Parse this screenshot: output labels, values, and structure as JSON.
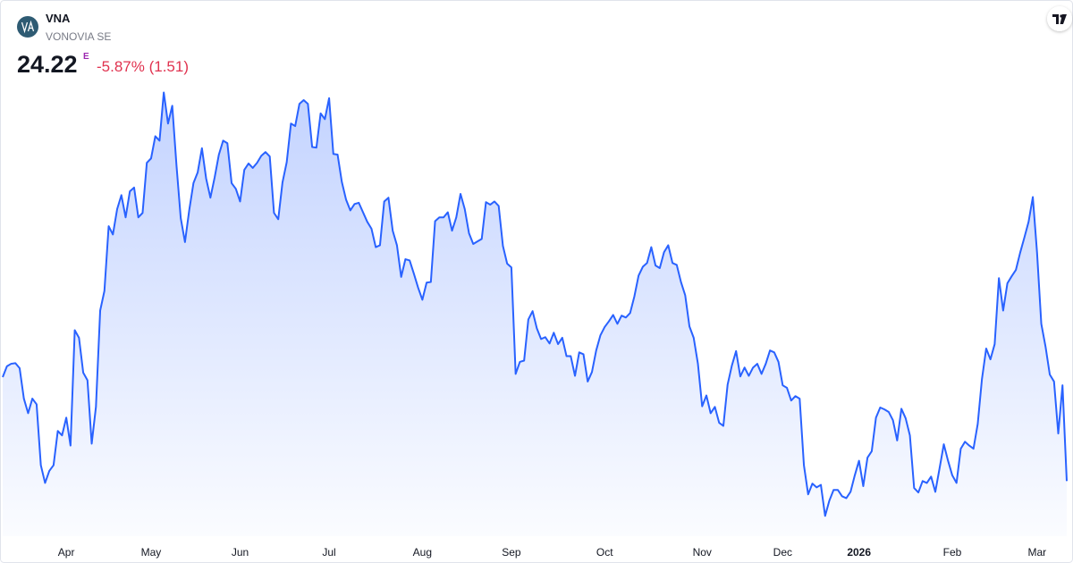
{
  "header": {
    "symbol": "VNA",
    "name": "VONOVIA SE",
    "price": 24.22,
    "price_flag": "E",
    "change_label": "-5.87% (1.51)"
  },
  "chart_data": {
    "type": "area",
    "color": "#2962ff",
    "ylim": [
      23.35,
      30.54
    ],
    "categories": [
      null,
      null,
      null,
      null,
      null,
      null,
      null,
      null,
      null,
      null,
      null,
      null,
      null,
      null,
      null,
      "Apr",
      null,
      null,
      null,
      null,
      null,
      null,
      null,
      null,
      null,
      null,
      null,
      null,
      null,
      null,
      null,
      null,
      null,
      null,
      null,
      "May",
      null,
      null,
      null,
      null,
      null,
      null,
      null,
      null,
      null,
      null,
      null,
      null,
      null,
      null,
      null,
      null,
      null,
      null,
      null,
      null,
      "Jun",
      null,
      null,
      null,
      null,
      null,
      null,
      null,
      null,
      null,
      null,
      null,
      null,
      null,
      null,
      null,
      null,
      null,
      null,
      null,
      null,
      "Jul",
      null,
      null,
      null,
      null,
      null,
      null,
      null,
      null,
      null,
      null,
      null,
      null,
      null,
      null,
      null,
      null,
      null,
      null,
      null,
      null,
      null,
      "Aug",
      null,
      null,
      null,
      null,
      null,
      null,
      null,
      null,
      null,
      null,
      null,
      null,
      null,
      null,
      null,
      null,
      null,
      null,
      null,
      null,
      "Sep",
      null,
      null,
      null,
      null,
      null,
      null,
      null,
      null,
      null,
      null,
      null,
      null,
      null,
      null,
      null,
      null,
      null,
      null,
      null,
      null,
      null,
      "Oct",
      null,
      null,
      null,
      null,
      null,
      null,
      null,
      null,
      null,
      null,
      null,
      null,
      null,
      null,
      null,
      null,
      null,
      null,
      null,
      null,
      null,
      null,
      "Nov",
      null,
      null,
      null,
      null,
      null,
      null,
      null,
      null,
      null,
      null,
      null,
      null,
      null,
      null,
      null,
      null,
      null,
      null,
      "Dec",
      null,
      null,
      null,
      null,
      null,
      null,
      null,
      null,
      null,
      null,
      null,
      null,
      null,
      null,
      null,
      null,
      null,
      "2026",
      null,
      null,
      null,
      null,
      null,
      null,
      null,
      null,
      null,
      null,
      null,
      null,
      null,
      null,
      null,
      null,
      null,
      null,
      null,
      null,
      null,
      "Feb",
      null,
      null,
      null,
      null,
      null,
      null,
      null,
      null,
      null,
      null,
      null,
      null,
      null,
      null,
      null,
      null,
      null,
      null,
      null,
      "Mar",
      null,
      null,
      null,
      null,
      null,
      null,
      null
    ],
    "values": [
      25.86,
      26.03,
      26.07,
      26.08,
      26.0,
      25.52,
      25.29,
      25.52,
      25.43,
      24.47,
      24.19,
      24.38,
      24.47,
      25.01,
      24.94,
      25.22,
      24.78,
      26.6,
      26.48,
      25.93,
      25.81,
      24.81,
      25.39,
      26.91,
      27.22,
      28.24,
      28.11,
      28.51,
      28.73,
      28.38,
      28.79,
      28.85,
      28.38,
      28.45,
      29.24,
      29.31,
      29.66,
      29.59,
      30.35,
      29.86,
      30.14,
      29.2,
      28.37,
      27.99,
      28.49,
      28.92,
      29.09,
      29.47,
      28.99,
      28.69,
      29.01,
      29.37,
      29.59,
      29.55,
      28.92,
      28.83,
      28.63,
      29.13,
      29.23,
      29.16,
      29.24,
      29.35,
      29.41,
      29.34,
      28.45,
      28.35,
      28.93,
      29.25,
      29.86,
      29.82,
      30.17,
      30.23,
      30.17,
      29.49,
      29.48,
      30.02,
      29.93,
      30.26,
      29.38,
      29.37,
      28.94,
      28.66,
      28.49,
      28.59,
      28.61,
      28.46,
      28.31,
      28.2,
      27.91,
      27.94,
      28.63,
      28.69,
      28.17,
      27.94,
      27.44,
      27.72,
      27.7,
      27.49,
      27.27,
      27.08,
      27.35,
      27.36,
      28.32,
      28.38,
      28.38,
      28.46,
      28.17,
      28.38,
      28.75,
      28.51,
      28.13,
      27.96,
      28.0,
      28.04,
      28.62,
      28.58,
      28.63,
      28.56,
      27.93,
      27.65,
      27.59,
      25.91,
      26.1,
      26.12,
      26.77,
      26.9,
      26.63,
      26.46,
      26.49,
      26.39,
      26.56,
      26.38,
      26.48,
      26.19,
      26.19,
      25.88,
      26.25,
      26.22,
      25.79,
      25.94,
      26.28,
      26.52,
      26.65,
      26.74,
      26.84,
      26.7,
      26.83,
      26.8,
      26.87,
      27.13,
      27.46,
      27.6,
      27.66,
      27.91,
      27.62,
      27.58,
      27.83,
      27.94,
      27.66,
      27.63,
      27.36,
      27.15,
      26.66,
      26.48,
      26.07,
      25.4,
      25.57,
      25.29,
      25.39,
      25.14,
      25.09,
      25.74,
      26.04,
      26.27,
      25.87,
      26.01,
      25.88,
      26.01,
      26.07,
      25.91,
      26.07,
      26.28,
      26.25,
      26.1,
      25.73,
      25.69,
      25.49,
      25.56,
      25.52,
      24.47,
      24.01,
      24.18,
      24.12,
      24.16,
      23.67,
      23.91,
      24.08,
      24.08,
      23.98,
      23.95,
      24.05,
      24.31,
      24.54,
      24.14,
      24.59,
      24.69,
      25.22,
      25.38,
      25.35,
      25.31,
      25.18,
      24.86,
      25.36,
      25.21,
      24.94,
      24.11,
      24.04,
      24.22,
      24.19,
      24.29,
      24.05,
      24.42,
      24.8,
      24.54,
      24.31,
      24.19,
      24.73,
      24.84,
      24.78,
      24.73,
      25.12,
      25.83,
      26.31,
      26.14,
      26.38,
      27.42,
      26.91,
      27.34,
      27.45,
      27.55,
      27.82,
      28.06,
      28.31,
      28.7,
      27.82,
      26.7,
      26.34,
      25.9,
      25.79,
      24.97,
      25.73,
      24.22
    ]
  }
}
